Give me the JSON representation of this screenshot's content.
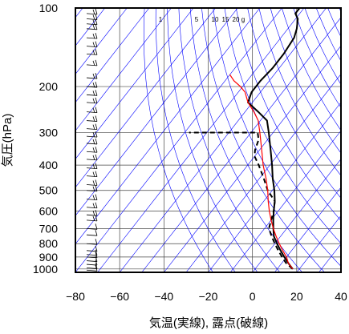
{
  "chart_data": {
    "type": "skew-t",
    "xlabel": "気温(実線), 露点(破線)",
    "ylabel": "気圧(hPa)",
    "xlim": [
      -80,
      40
    ],
    "ylim": [
      1030,
      100
    ],
    "x_ticks": [
      -80,
      -60,
      -40,
      -20,
      0,
      20,
      40
    ],
    "y_ticks": [
      100,
      200,
      300,
      400,
      500,
      600,
      700,
      800,
      900,
      1000
    ],
    "y_scale": "log",
    "grid": true,
    "mixing_ratio_labels": [
      "1",
      "5",
      "10",
      "15",
      "20",
      "g"
    ],
    "colors": {
      "temperature": "#000000",
      "dewpoint": "#000000",
      "parcel": "#ff0000",
      "isopleths": "#0000ff",
      "grid": "#444444"
    },
    "series": [
      {
        "name": "",
        "line_style": "solid",
        "color": "#000000",
        "points": [
          [
            17,
            1000
          ],
          [
            13,
            950
          ],
          [
            9,
            900
          ],
          [
            5,
            850
          ],
          [
            1,
            800
          ],
          [
            -3,
            750
          ],
          [
            -6,
            700
          ],
          [
            -9,
            650
          ],
          [
            -12,
            600
          ],
          [
            -15,
            550
          ],
          [
            -19,
            500
          ],
          [
            -24,
            450
          ],
          [
            -29,
            400
          ],
          [
            -35,
            350
          ],
          [
            -42,
            300
          ],
          [
            -47,
            270
          ],
          [
            -54,
            250
          ],
          [
            -62,
            230
          ],
          [
            -64,
            210
          ],
          [
            -64,
            190
          ],
          [
            -63,
            170
          ],
          [
            -63,
            150
          ],
          [
            -64,
            130
          ],
          [
            -66,
            120
          ],
          [
            -69,
            110
          ],
          [
            -72,
            105
          ],
          [
            -72,
            100
          ]
        ]
      },
      {
        "name": "",
        "line_style": "dashed",
        "color": "#000000",
        "points": [
          [
            17,
            1000
          ],
          [
            12,
            950
          ],
          [
            8,
            900
          ],
          [
            4,
            850
          ],
          [
            0,
            800
          ],
          [
            -4,
            750
          ],
          [
            -8,
            700
          ],
          [
            -10,
            650
          ],
          [
            -12,
            600
          ],
          [
            -15,
            550
          ],
          [
            -22,
            500
          ],
          [
            -28,
            450
          ],
          [
            -35,
            400
          ],
          [
            -40,
            370
          ],
          [
            -42,
            350
          ],
          [
            -44,
            320
          ],
          [
            -47,
            300
          ],
          [
            -78,
            300
          ]
        ]
      },
      {
        "name": "",
        "line_style": "solid",
        "color": "#ff0000",
        "points": [
          [
            17,
            1000
          ],
          [
            13,
            950
          ],
          [
            10,
            900
          ],
          [
            6,
            850
          ],
          [
            2,
            800
          ],
          [
            -2,
            750
          ],
          [
            -6,
            700
          ],
          [
            -10,
            650
          ],
          [
            -14,
            600
          ],
          [
            -18,
            550
          ],
          [
            -22,
            500
          ],
          [
            -27,
            450
          ],
          [
            -33,
            400
          ],
          [
            -39,
            350
          ],
          [
            -46,
            300
          ],
          [
            -51,
            270
          ],
          [
            -56,
            250
          ],
          [
            -62,
            230
          ],
          [
            -67,
            210
          ],
          [
            -71,
            200
          ],
          [
            -76,
            190
          ],
          [
            -80,
            180
          ]
        ]
      }
    ],
    "wind_barbs": {
      "position": "left-edge",
      "direction": "westerly"
    }
  }
}
